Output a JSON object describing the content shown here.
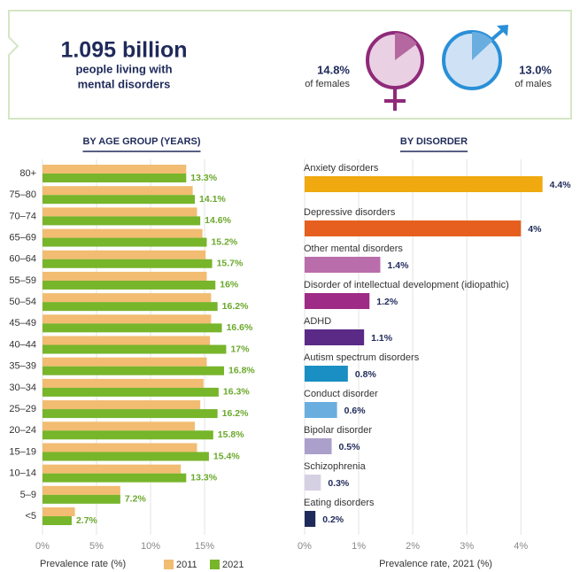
{
  "header": {
    "headline": "1.095 billion",
    "subtitle_lines": [
      "people living with",
      "mental disorders"
    ],
    "female": {
      "value": 14.8,
      "value_label": "14.8%",
      "caption": "of females"
    },
    "male": {
      "value": 13.0,
      "value_label": "13.0%",
      "caption": "of males"
    }
  },
  "chart_data": [
    {
      "type": "bar",
      "orientation": "horizontal",
      "title": "BY AGE GROUP (YEARS)",
      "categories": [
        "80+",
        "75–80",
        "70–74",
        "65–69",
        "60–64",
        "55–59",
        "50–54",
        "45–49",
        "40–44",
        "35–39",
        "30–34",
        "25–29",
        "20–24",
        "15–19",
        "10–14",
        "5–9",
        "<5"
      ],
      "series": [
        {
          "name": "2011",
          "color": "#f2bc72",
          "values": [
            13.3,
            13.9,
            14.3,
            14.8,
            15.1,
            15.2,
            15.6,
            15.6,
            15.5,
            15.2,
            14.9,
            14.6,
            14.1,
            14.3,
            12.8,
            7.2,
            3.0
          ]
        },
        {
          "name": "2021",
          "color": "#77b52b",
          "values": [
            13.3,
            14.1,
            14.6,
            15.2,
            15.7,
            16,
            16.2,
            16.6,
            17,
            16.8,
            16.3,
            16.2,
            15.8,
            15.4,
            13.3,
            7.2,
            2.7
          ],
          "value_labels": [
            "13.3%",
            "14.1%",
            "14.6%",
            "15.2%",
            "15.7%",
            "16%",
            "16.2%",
            "16.6%",
            "17%",
            "16.8%",
            "16.3%",
            "16.2%",
            "15.8%",
            "15.4%",
            "13.3%",
            "7.2%",
            "2.7%"
          ]
        }
      ],
      "xlim": [
        0,
        22.7
      ],
      "xticks": [
        {
          "value": 0,
          "label": "0%"
        },
        {
          "value": 5,
          "label": "5%"
        },
        {
          "value": 10,
          "label": "10%"
        },
        {
          "value": 15,
          "label": "15%"
        }
      ],
      "x_label": "Prevalence rate (%)",
      "grid": true
    },
    {
      "type": "bar",
      "orientation": "horizontal",
      "title": "BY DISORDER",
      "categories": [
        "Anxiety disorders",
        "Depressive disorders",
        "Other mental disorders",
        "Disorder of intellectual development (idiopathic)",
        "ADHD",
        "Autism spectrum disorders",
        "Conduct disorder",
        "Bipolar disorder",
        "Schizophrenia",
        "Eating disorders"
      ],
      "values": [
        4.4,
        4,
        1.4,
        1.2,
        1.1,
        0.8,
        0.6,
        0.5,
        0.3,
        0.2
      ],
      "value_labels": [
        "4.4%",
        "4%",
        "1.4%",
        "1.2%",
        "1.1%",
        "0.8%",
        "0.6%",
        "0.5%",
        "0.3%",
        "0.2%"
      ],
      "colors": [
        "#f0a90f",
        "#e65f1e",
        "#b96dab",
        "#9e2b86",
        "#5a2a86",
        "#1a8fc4",
        "#6aaee0",
        "#ab9fcb",
        "#d6d0e3",
        "#1e2a5a"
      ],
      "xlim": [
        0,
        4.52
      ],
      "xticks": [
        {
          "value": 0,
          "label": "0%"
        },
        {
          "value": 1,
          "label": "1%"
        },
        {
          "value": 2,
          "label": "2%"
        },
        {
          "value": 3,
          "label": "3%"
        },
        {
          "value": 4,
          "label": "4%"
        }
      ],
      "x_label": "Prevalence rate, 2021 (%)",
      "grid": true
    }
  ]
}
